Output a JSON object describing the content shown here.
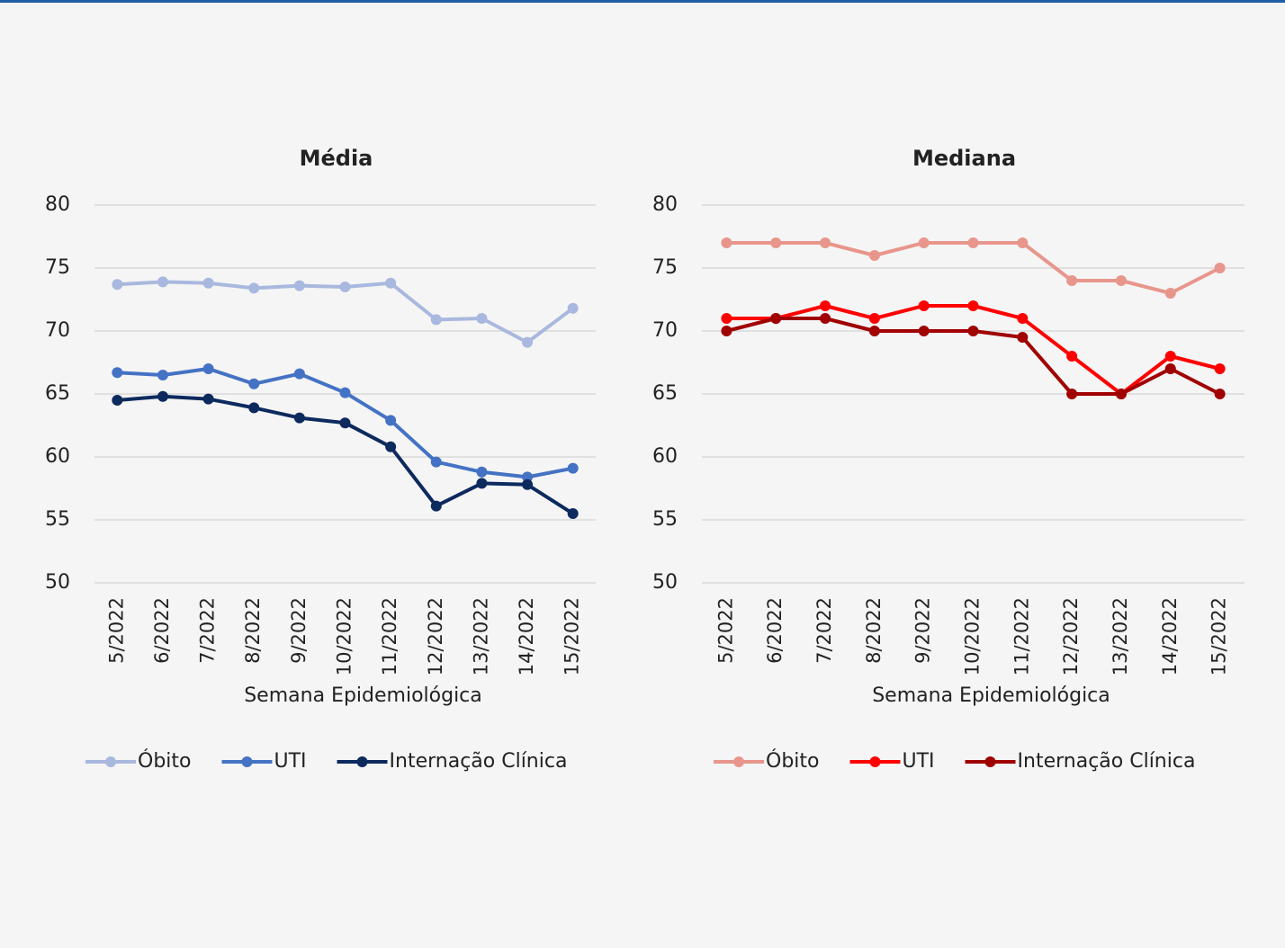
{
  "chart_data": [
    {
      "type": "line",
      "title": "Média",
      "x_label": "Semana Epidemiológica",
      "categories": [
        "5/2022",
        "6/2022",
        "7/2022",
        "8/2022",
        "9/2022",
        "10/2022",
        "11/2022",
        "12/2022",
        "13/2022",
        "14/2022",
        "15/2022"
      ],
      "ylim": [
        50,
        80
      ],
      "yticks": [
        50,
        55,
        60,
        65,
        70,
        75,
        80
      ],
      "grid": true,
      "legend": "bottom",
      "series": [
        {
          "name": "Óbito",
          "color": "#a9b8de",
          "values": [
            73.7,
            73.9,
            73.8,
            73.4,
            73.6,
            73.5,
            73.8,
            70.9,
            71.0,
            69.1,
            71.8
          ]
        },
        {
          "name": "UTI",
          "color": "#4472c4",
          "values": [
            66.7,
            66.5,
            67.0,
            65.8,
            66.6,
            65.1,
            62.9,
            59.6,
            58.8,
            58.4,
            59.1
          ]
        },
        {
          "name": "Internação Clínica",
          "color": "#0d2a5e",
          "values": [
            64.5,
            64.8,
            64.6,
            63.9,
            63.1,
            62.7,
            60.8,
            56.1,
            57.9,
            57.8,
            55.5
          ]
        }
      ]
    },
    {
      "type": "line",
      "title": "Mediana",
      "x_label": "Semana Epidemiológica",
      "categories": [
        "5/2022",
        "6/2022",
        "7/2022",
        "8/2022",
        "9/2022",
        "10/2022",
        "11/2022",
        "12/2022",
        "13/2022",
        "14/2022",
        "15/2022"
      ],
      "ylim": [
        50,
        80
      ],
      "yticks": [
        50,
        55,
        60,
        65,
        70,
        75,
        80
      ],
      "grid": true,
      "legend": "bottom",
      "series": [
        {
          "name": "Óbito",
          "color": "#e8968c",
          "values": [
            77,
            77,
            77,
            76,
            77,
            77,
            77,
            74,
            74,
            73,
            75
          ]
        },
        {
          "name": "UTI",
          "color": "#ff0000",
          "values": [
            71,
            71,
            72,
            71,
            72,
            72,
            71,
            68,
            65,
            68,
            67
          ]
        },
        {
          "name": "Internação Clínica",
          "color": "#a00000",
          "values": [
            70,
            71,
            71,
            70,
            70,
            70,
            69.5,
            65,
            65,
            67,
            65
          ]
        }
      ]
    }
  ]
}
